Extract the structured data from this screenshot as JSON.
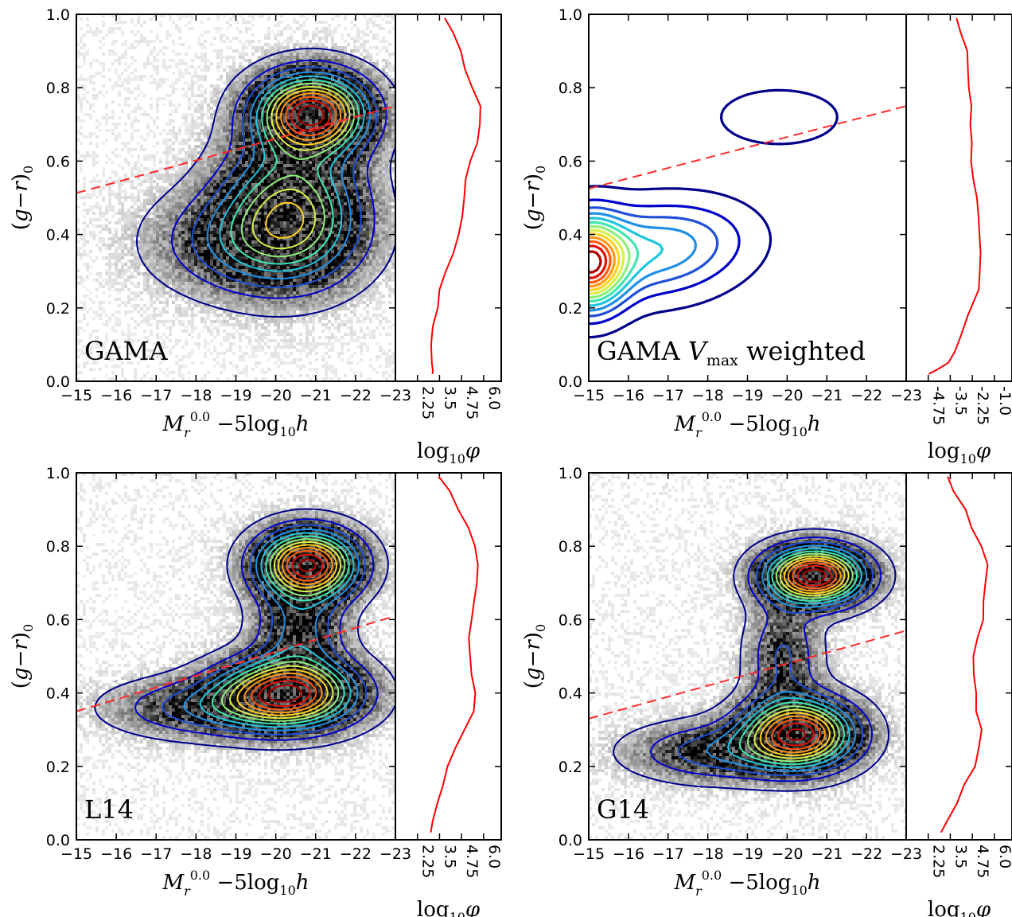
{
  "chart_data": [
    {
      "type": "heatmap",
      "panel": "top-left",
      "label": "GAMA",
      "xlabel": "M_r^{0.0} −5log10 h",
      "ylabel": "(g−r)_0",
      "xlim": [
        -15,
        -23
      ],
      "ylim": [
        0.0,
        1.0
      ],
      "xticks": [
        "−15",
        "−16",
        "−17",
        "−18",
        "−19",
        "−20",
        "−21",
        "−22",
        "−23"
      ],
      "yticks": [
        "0.0",
        "0.2",
        "0.4",
        "0.6",
        "0.8",
        "1.0"
      ],
      "density_style": "grayscale-points-with-contours",
      "blobs": [
        {
          "mag": -20.9,
          "color": 0.73,
          "sx": 0.9,
          "sy": 0.07,
          "weight": 1.0
        },
        {
          "mag": -20.4,
          "color": 0.48,
          "sx": 1.1,
          "sy": 0.12,
          "weight": 0.55
        },
        {
          "mag": -19.5,
          "color": 0.38,
          "sx": 1.5,
          "sy": 0.09,
          "weight": 0.3
        }
      ],
      "divider": {
        "x": [
          -15,
          -23
        ],
        "y": [
          0.513,
          0.75
        ]
      },
      "side": {
        "xlabel": "log10 φ",
        "xticks": [
          "2.25",
          "3.5",
          "4.75",
          "6.0"
        ],
        "xlim": [
          1.0,
          7.0
        ],
        "profile_y": [
          0.02,
          0.03,
          0.05,
          0.1,
          0.15,
          0.2,
          0.25,
          0.3,
          0.35,
          0.4,
          0.45,
          0.5,
          0.55,
          0.6,
          0.65,
          0.7,
          0.75,
          0.8,
          0.85,
          0.9,
          0.95,
          0.99
        ],
        "profile_x": [
          3.0,
          3.2,
          3.05,
          3.1,
          3.15,
          3.35,
          3.6,
          3.9,
          4.2,
          4.5,
          4.7,
          4.9,
          5.1,
          5.35,
          5.55,
          5.7,
          5.75,
          5.35,
          4.95,
          4.6,
          4.2,
          3.8
        ]
      }
    },
    {
      "type": "heatmap",
      "panel": "top-right",
      "label": "GAMA V_max weighted",
      "xlabel": "M_r^{0.0} −5log10 h",
      "ylabel": "(g−r)_0",
      "xlim": [
        -15,
        -23
      ],
      "ylim": [
        0.0,
        1.0
      ],
      "xticks": [
        "−15",
        "−16",
        "−17",
        "−18",
        "−19",
        "−20",
        "−21",
        "−22",
        "−23"
      ],
      "yticks": [
        "0.0",
        "0.2",
        "0.4",
        "0.6",
        "0.8",
        "1.0"
      ],
      "density_style": "contours-only",
      "blobs": [
        {
          "mag": -15.0,
          "color": 0.32,
          "sx": 0.6,
          "sy": 0.08,
          "weight": 1.0
        },
        {
          "mag": -16.4,
          "color": 0.35,
          "sx": 1.3,
          "sy": 0.08,
          "weight": 0.35
        },
        {
          "mag": -17.8,
          "color": 0.4,
          "sx": 1.1,
          "sy": 0.07,
          "weight": 0.12
        },
        {
          "mag": -19.8,
          "color": 0.72,
          "sx": 1.2,
          "sy": 0.06,
          "weight": 0.1
        }
      ],
      "divider": {
        "x": [
          -15,
          -23
        ],
        "y": [
          0.525,
          0.75
        ]
      },
      "side": {
        "xlabel": "log10 φ",
        "xticks": [
          "-4.75",
          "-3.5",
          "-2.25",
          "-1.0"
        ],
        "xlim": [
          -6.0,
          0.0
        ],
        "profile_y": [
          0.02,
          0.03,
          0.05,
          0.08,
          0.12,
          0.18,
          0.25,
          0.3,
          0.35,
          0.4,
          0.45,
          0.5,
          0.55,
          0.6,
          0.65,
          0.7,
          0.75,
          0.8,
          0.85,
          0.9,
          0.95,
          0.99
        ],
        "profile_x": [
          -4.6,
          -4.2,
          -3.6,
          -3.2,
          -2.9,
          -2.4,
          -2.0,
          -1.75,
          -1.7,
          -1.8,
          -1.9,
          -2.0,
          -2.1,
          -2.2,
          -2.3,
          -2.4,
          -2.3,
          -2.35,
          -2.5,
          -2.6,
          -2.9,
          -3.2
        ]
      }
    },
    {
      "type": "heatmap",
      "panel": "bottom-left",
      "label": "L14",
      "xlabel": "M_r^{0.0} −5log10 h",
      "ylabel": "(g−r)_0",
      "xlim": [
        -15,
        -23
      ],
      "ylim": [
        0.0,
        1.0
      ],
      "xticks": [
        "−15",
        "−16",
        "−17",
        "−18",
        "−19",
        "−20",
        "−21",
        "−22",
        "−23"
      ],
      "yticks": [
        "0.0",
        "0.2",
        "0.4",
        "0.6",
        "0.8",
        "1.0"
      ],
      "density_style": "grayscale-points-with-contours",
      "blobs": [
        {
          "mag": -20.8,
          "color": 0.75,
          "sx": 0.8,
          "sy": 0.06,
          "weight": 1.0
        },
        {
          "mag": -20.3,
          "color": 0.4,
          "sx": 1.1,
          "sy": 0.06,
          "weight": 0.95
        },
        {
          "mag": -18.3,
          "color": 0.36,
          "sx": 1.5,
          "sy": 0.05,
          "weight": 0.25
        },
        {
          "mag": -20.6,
          "color": 0.57,
          "sx": 0.7,
          "sy": 0.08,
          "weight": 0.3
        }
      ],
      "divider": {
        "x": [
          -15,
          -23
        ],
        "y": [
          0.35,
          0.61
        ]
      },
      "side": {
        "xlabel": "log10 φ",
        "xticks": [
          "2.25",
          "3.5",
          "4.75",
          "6.0"
        ],
        "xlim": [
          1.0,
          7.0
        ],
        "profile_y": [
          0.02,
          0.05,
          0.1,
          0.15,
          0.2,
          0.25,
          0.3,
          0.35,
          0.4,
          0.45,
          0.5,
          0.55,
          0.6,
          0.65,
          0.7,
          0.75,
          0.8,
          0.85,
          0.9,
          0.95,
          0.99
        ],
        "profile_x": [
          3.0,
          3.1,
          3.3,
          3.6,
          4.0,
          4.5,
          5.0,
          5.4,
          5.5,
          5.35,
          5.2,
          5.1,
          5.2,
          5.4,
          5.6,
          5.65,
          5.5,
          5.1,
          4.6,
          4.0,
          3.4
        ]
      }
    },
    {
      "type": "heatmap",
      "panel": "bottom-right",
      "label": "G14",
      "xlabel": "M_r^{0.0} −5log10 h",
      "ylabel": "(g−r)_0",
      "xlim": [
        -15,
        -23
      ],
      "ylim": [
        0.0,
        1.0
      ],
      "xticks": [
        "−15",
        "−16",
        "−17",
        "−18",
        "−19",
        "−20",
        "−21",
        "−22",
        "−23"
      ],
      "yticks": [
        "0.0",
        "0.2",
        "0.4",
        "0.6",
        "0.8",
        "1.0"
      ],
      "density_style": "grayscale-points-with-contours",
      "blobs": [
        {
          "mag": -20.7,
          "color": 0.72,
          "sx": 0.8,
          "sy": 0.05,
          "weight": 1.0
        },
        {
          "mag": -20.3,
          "color": 0.29,
          "sx": 0.9,
          "sy": 0.06,
          "weight": 0.9
        },
        {
          "mag": -18.3,
          "color": 0.24,
          "sx": 1.4,
          "sy": 0.05,
          "weight": 0.25
        },
        {
          "mag": -19.9,
          "color": 0.5,
          "sx": 0.6,
          "sy": 0.1,
          "weight": 0.2
        }
      ],
      "divider": {
        "x": [
          -15,
          -23
        ],
        "y": [
          0.33,
          0.57
        ]
      },
      "side": {
        "xlabel": "log10 φ",
        "xticks": [
          "2.25",
          "3.5",
          "4.75",
          "6.0"
        ],
        "xlim": [
          1.0,
          7.0
        ],
        "profile_y": [
          0.02,
          0.05,
          0.1,
          0.15,
          0.2,
          0.25,
          0.3,
          0.35,
          0.4,
          0.45,
          0.5,
          0.55,
          0.6,
          0.65,
          0.7,
          0.75,
          0.8,
          0.85,
          0.9,
          0.95,
          0.99
        ],
        "profile_x": [
          3.0,
          3.3,
          3.8,
          4.3,
          4.8,
          5.1,
          5.2,
          5.05,
          4.9,
          4.8,
          4.9,
          5.1,
          5.3,
          5.5,
          5.6,
          5.5,
          5.2,
          4.8,
          4.3,
          3.8,
          3.3
        ]
      }
    }
  ],
  "colors": {
    "divider_line": "#ff2a2a",
    "profile_line": "#ff0000",
    "contour_scale": [
      "#00008b",
      "#0000cd",
      "#1e4fd8",
      "#1f8fe8",
      "#20c5e0",
      "#3ee8b0",
      "#8ef07a",
      "#d8f048",
      "#ffd21e",
      "#ff9a12",
      "#ff5a0a",
      "#e01006",
      "#b00000"
    ]
  }
}
